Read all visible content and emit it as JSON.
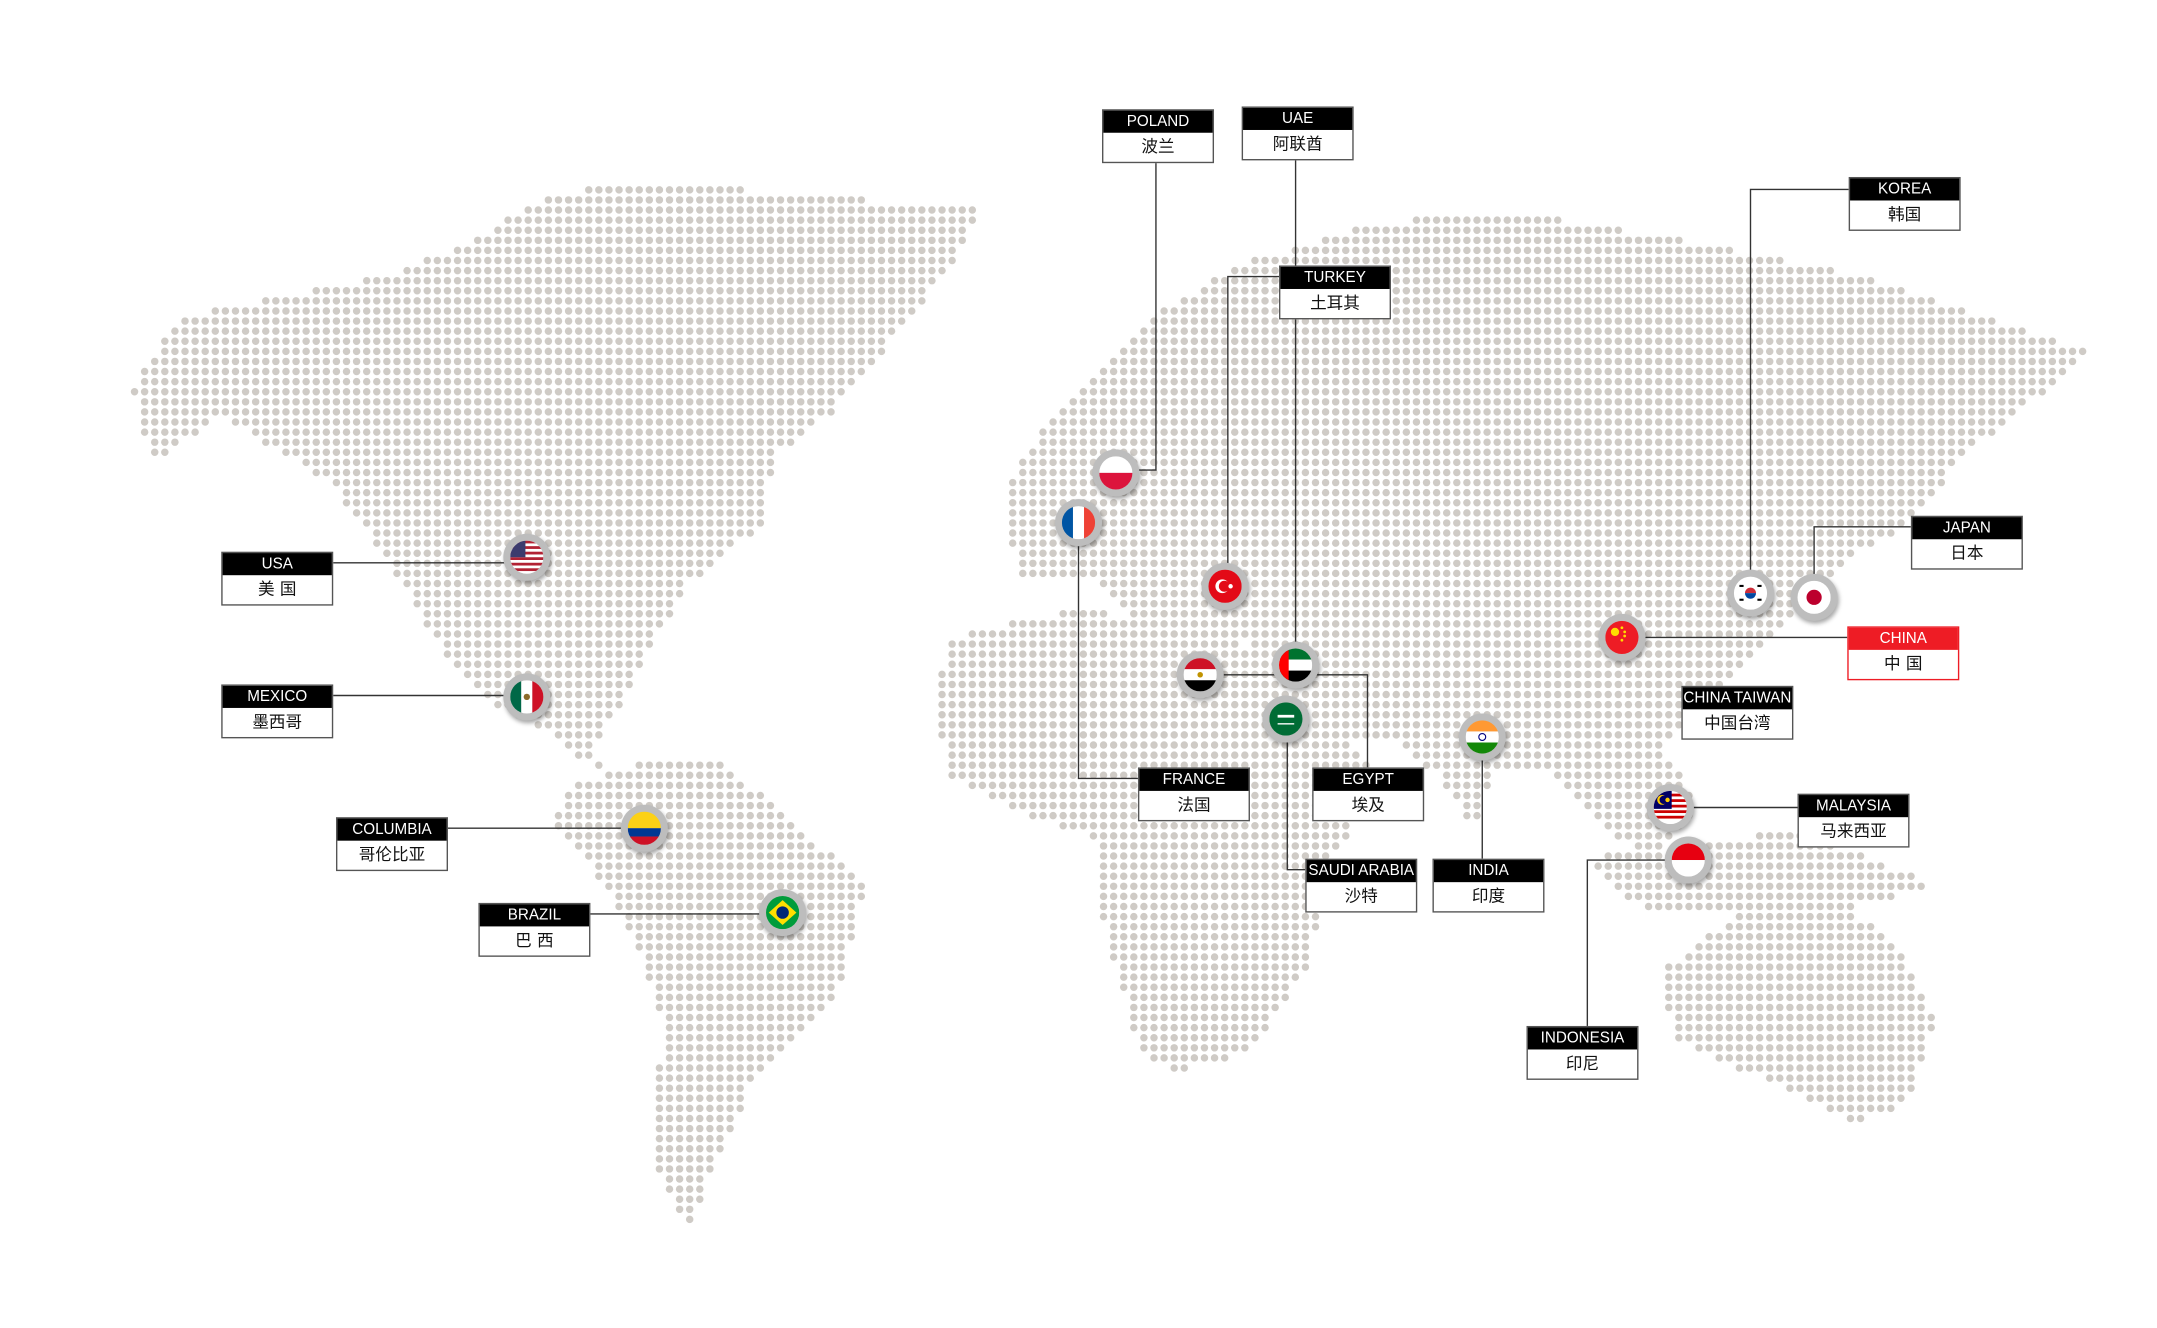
{
  "colors": {
    "dot": "#cfcbc6",
    "line": "#333333",
    "highlight": "#ee1c25",
    "ring": "#bdbdbd"
  },
  "labels": [
    {
      "id": "poland",
      "en": "POLAND",
      "zh": "波兰",
      "flag": "poland-flag-icon"
    },
    {
      "id": "uae",
      "en": "UAE",
      "zh": "阿联酋",
      "flag": "uae-flag-icon"
    },
    {
      "id": "turkey",
      "en": "TURKEY",
      "zh": "土耳其",
      "flag": "turkey-flag-icon"
    },
    {
      "id": "korea",
      "en": "KOREA",
      "zh": "韩国",
      "flag": "korea-flag-icon"
    },
    {
      "id": "japan",
      "en": "JAPAN",
      "zh": "日本",
      "flag": "japan-flag-icon"
    },
    {
      "id": "china",
      "en": "CHINA",
      "zh": "中 国",
      "flag": "china-flag-icon",
      "highlight": true
    },
    {
      "id": "china-taiwan",
      "en": "CHINA TAIWAN",
      "zh": "中国台湾"
    },
    {
      "id": "malaysia",
      "en": "MALAYSIA",
      "zh": "马来西亚",
      "flag": "malaysia-flag-icon"
    },
    {
      "id": "indonesia",
      "en": "INDONESIA",
      "zh": "印尼",
      "flag": "indonesia-flag-icon"
    },
    {
      "id": "india",
      "en": "INDIA",
      "zh": "印度",
      "flag": "india-flag-icon"
    },
    {
      "id": "saudi-arabia",
      "en": "SAUDI ARABIA",
      "zh": "沙特",
      "flag": "saudi-arabia-flag-icon"
    },
    {
      "id": "egypt",
      "en": "EGYPT",
      "zh": "埃及",
      "flag": "egypt-flag-icon"
    },
    {
      "id": "france",
      "en": "FRANCE",
      "zh": "法国",
      "flag": "france-flag-icon"
    },
    {
      "id": "usa",
      "en": "USA",
      "zh": "美 国",
      "flag": "usa-flag-icon"
    },
    {
      "id": "mexico",
      "en": "MEXICO",
      "zh": "墨西哥",
      "flag": "mexico-flag-icon"
    },
    {
      "id": "columbia",
      "en": "COLUMBIA",
      "zh": "哥伦比亚",
      "flag": "colombia-flag-icon"
    },
    {
      "id": "brazil",
      "en": "BRAZIL",
      "zh": "巴 西",
      "flag": "brazil-flag-icon"
    }
  ]
}
